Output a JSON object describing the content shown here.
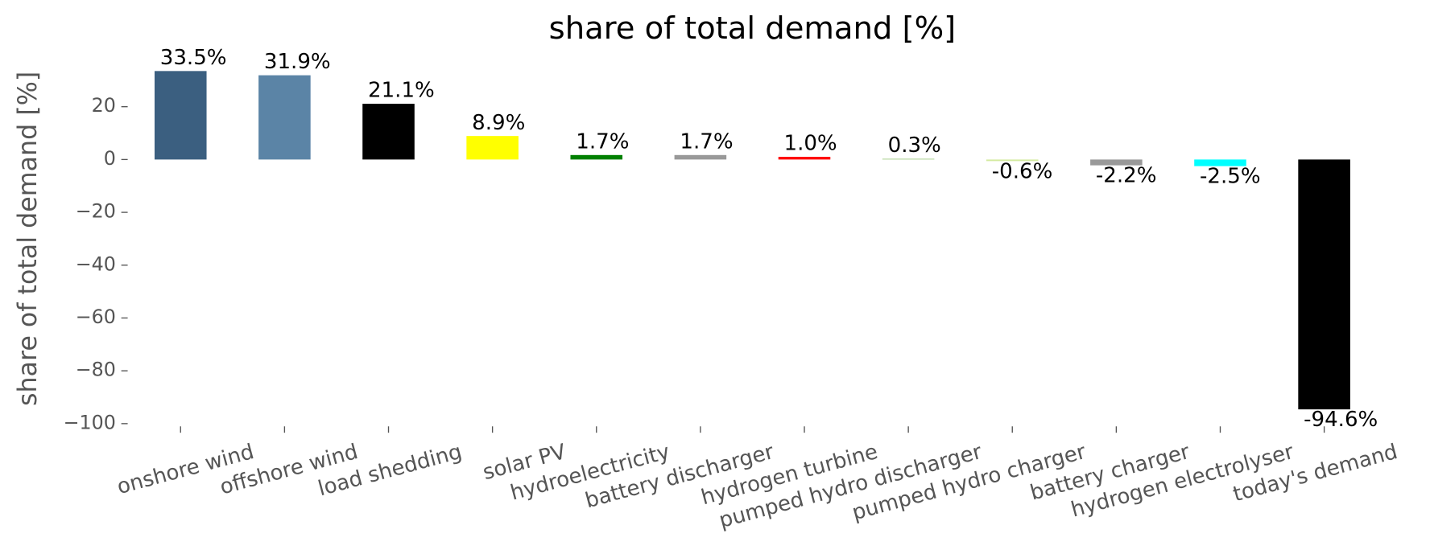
{
  "chart_data": {
    "type": "bar",
    "title": "share of total demand [%]",
    "y_label": "share of total demand [%]",
    "categories": [
      "onshore wind",
      "offshore wind",
      "load shedding",
      "solar PV",
      "hydroelectricity",
      "battery discharger",
      "hydrogen turbine",
      "pumped hydro discharger",
      "pumped hydro charger",
      "battery charger",
      "hydrogen electrolyser",
      "today's demand"
    ],
    "values": [
      33.5,
      31.9,
      21.1,
      8.9,
      1.7,
      1.7,
      1.0,
      0.3,
      -0.6,
      -2.2,
      -2.5,
      -94.6
    ],
    "value_labels": [
      "33.5%",
      "31.9%",
      "21.1%",
      "8.9%",
      "1.7%",
      "1.7%",
      "1.0%",
      "0.3%",
      "-0.6%",
      "-2.2%",
      "-2.5%",
      "-94.6%"
    ],
    "colors": [
      "#3b5f80",
      "#5b84a6",
      "#000000",
      "#ffff00",
      "#008000",
      "#999999",
      "#ff0000",
      "#a8d08d",
      "#d4eaa0",
      "#999999",
      "#00ffff",
      "#000000"
    ],
    "ylim": [
      -100,
      35
    ],
    "yticks": [
      {
        "value": -100,
        "label": "−100"
      },
      {
        "value": -80,
        "label": "−80"
      },
      {
        "value": -60,
        "label": "−60"
      },
      {
        "value": -40,
        "label": "−40"
      },
      {
        "value": -20,
        "label": "−20"
      },
      0,
      20
    ]
  }
}
